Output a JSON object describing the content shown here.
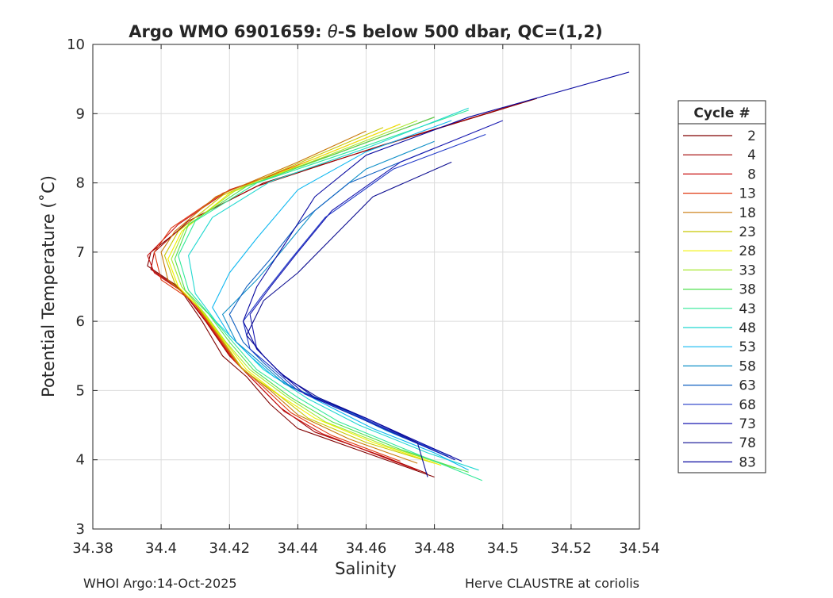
{
  "chart_data": {
    "type": "line",
    "title_prefix": "Argo WMO 6901659: ",
    "title_theta": "θ",
    "title_suffix": "-S below 500 dbar,  QC=(1,2)",
    "xlabel": "Salinity",
    "ylabel": "Potential Temperature (˚C)",
    "xlim": [
      34.38,
      34.54
    ],
    "ylim": [
      3,
      10
    ],
    "xticks": [
      34.38,
      34.4,
      34.42,
      34.44,
      34.46,
      34.48,
      34.5,
      34.52,
      34.54
    ],
    "xtick_labels": [
      "34.38",
      "34.4",
      "34.42",
      "34.44",
      "34.46",
      "34.48",
      "34.5",
      "34.52",
      "34.54"
    ],
    "yticks": [
      3,
      4,
      5,
      6,
      7,
      8,
      9,
      10
    ],
    "ytick_labels": [
      "3",
      "4",
      "5",
      "6",
      "7",
      "8",
      "9",
      "10"
    ],
    "grid": true,
    "legend_title": "Cycle #",
    "legend_position": "right-outside",
    "series": [
      {
        "name": "2",
        "color": "#800000",
        "points": [
          [
            34.51,
            9.22
          ],
          [
            34.47,
            8.62
          ],
          [
            34.43,
            8.0
          ],
          [
            34.41,
            7.5
          ],
          [
            34.397,
            7.0
          ],
          [
            34.396,
            6.8
          ],
          [
            34.405,
            6.5
          ],
          [
            34.412,
            6.0
          ],
          [
            34.418,
            5.5
          ],
          [
            34.425,
            5.2
          ],
          [
            34.432,
            4.8
          ],
          [
            34.44,
            4.45
          ],
          [
            34.46,
            4.1
          ],
          [
            34.48,
            3.75
          ]
        ]
      },
      {
        "name": "4",
        "color": "#a00000",
        "points": [
          [
            34.505,
            9.15
          ],
          [
            34.465,
            8.55
          ],
          [
            34.428,
            7.95
          ],
          [
            34.408,
            7.45
          ],
          [
            34.398,
            7.0
          ],
          [
            34.397,
            6.75
          ],
          [
            34.406,
            6.45
          ],
          [
            34.413,
            6.0
          ],
          [
            34.42,
            5.5
          ],
          [
            34.427,
            5.15
          ],
          [
            34.435,
            4.75
          ],
          [
            34.445,
            4.4
          ],
          [
            34.465,
            4.05
          ],
          [
            34.478,
            3.8
          ]
        ]
      },
      {
        "name": "8",
        "color": "#c81010",
        "points": [
          [
            34.48,
            8.95
          ],
          [
            34.45,
            8.4
          ],
          [
            34.42,
            7.9
          ],
          [
            34.405,
            7.4
          ],
          [
            34.396,
            6.95
          ],
          [
            34.398,
            6.7
          ],
          [
            34.407,
            6.4
          ],
          [
            34.414,
            5.95
          ],
          [
            34.421,
            5.45
          ],
          [
            34.428,
            5.1
          ],
          [
            34.436,
            4.7
          ],
          [
            34.447,
            4.38
          ],
          [
            34.467,
            4.0
          ],
          [
            34.475,
            3.85
          ]
        ]
      },
      {
        "name": "13",
        "color": "#e03810",
        "points": [
          [
            34.47,
            8.85
          ],
          [
            34.445,
            8.35
          ],
          [
            34.418,
            7.85
          ],
          [
            34.403,
            7.35
          ],
          [
            34.398,
            7.0
          ],
          [
            34.4,
            6.6
          ],
          [
            34.409,
            6.3
          ],
          [
            34.415,
            5.9
          ],
          [
            34.422,
            5.4
          ],
          [
            34.43,
            5.05
          ],
          [
            34.438,
            4.68
          ],
          [
            34.45,
            4.35
          ],
          [
            34.47,
            3.98
          ]
        ]
      },
      {
        "name": "18",
        "color": "#c87808",
        "points": [
          [
            34.46,
            8.75
          ],
          [
            34.44,
            8.3
          ],
          [
            34.416,
            7.8
          ],
          [
            34.404,
            7.3
          ],
          [
            34.4,
            7.0
          ],
          [
            34.402,
            6.6
          ],
          [
            34.41,
            6.25
          ],
          [
            34.416,
            5.85
          ],
          [
            34.423,
            5.35
          ],
          [
            34.432,
            5.0
          ],
          [
            34.44,
            4.65
          ],
          [
            34.455,
            4.3
          ],
          [
            34.475,
            3.95
          ]
        ]
      },
      {
        "name": "23",
        "color": "#c8c800",
        "points": [
          [
            34.465,
            8.8
          ],
          [
            34.442,
            8.32
          ],
          [
            34.418,
            7.82
          ],
          [
            34.405,
            7.3
          ],
          [
            34.401,
            6.95
          ],
          [
            34.404,
            6.55
          ],
          [
            34.411,
            6.2
          ],
          [
            34.417,
            5.8
          ],
          [
            34.424,
            5.3
          ],
          [
            34.434,
            4.95
          ],
          [
            34.443,
            4.6
          ],
          [
            34.46,
            4.25
          ],
          [
            34.48,
            3.95
          ]
        ]
      },
      {
        "name": "28",
        "color": "#f0f000",
        "points": [
          [
            34.47,
            8.85
          ],
          [
            34.445,
            8.35
          ],
          [
            34.42,
            7.85
          ],
          [
            34.406,
            7.3
          ],
          [
            34.402,
            6.9
          ],
          [
            34.405,
            6.5
          ],
          [
            34.412,
            6.15
          ],
          [
            34.418,
            5.75
          ],
          [
            34.425,
            5.3
          ],
          [
            34.435,
            4.92
          ],
          [
            34.445,
            4.6
          ],
          [
            34.462,
            4.25
          ],
          [
            34.482,
            3.92
          ]
        ]
      },
      {
        "name": "33",
        "color": "#a8e830",
        "points": [
          [
            34.475,
            8.9
          ],
          [
            34.448,
            8.38
          ],
          [
            34.422,
            7.9
          ],
          [
            34.407,
            7.35
          ],
          [
            34.403,
            6.9
          ],
          [
            34.406,
            6.5
          ],
          [
            34.413,
            6.1
          ],
          [
            34.419,
            5.7
          ],
          [
            34.426,
            5.3
          ],
          [
            34.437,
            4.9
          ],
          [
            34.448,
            4.55
          ],
          [
            34.466,
            4.2
          ],
          [
            34.486,
            3.88
          ]
        ]
      },
      {
        "name": "38",
        "color": "#50e050",
        "points": [
          [
            34.48,
            8.95
          ],
          [
            34.45,
            8.4
          ],
          [
            34.425,
            7.95
          ],
          [
            34.408,
            7.4
          ],
          [
            34.404,
            6.9
          ],
          [
            34.407,
            6.45
          ],
          [
            34.414,
            6.1
          ],
          [
            34.42,
            5.7
          ],
          [
            34.427,
            5.3
          ],
          [
            34.438,
            4.9
          ],
          [
            34.45,
            4.55
          ],
          [
            34.47,
            4.15
          ],
          [
            34.49,
            3.82
          ]
        ]
      },
      {
        "name": "43",
        "color": "#30e898",
        "points": [
          [
            34.49,
            9.05
          ],
          [
            34.455,
            8.45
          ],
          [
            34.428,
            8.0
          ],
          [
            34.41,
            7.45
          ],
          [
            34.405,
            6.95
          ],
          [
            34.408,
            6.45
          ],
          [
            34.415,
            6.05
          ],
          [
            34.421,
            5.7
          ],
          [
            34.428,
            5.3
          ],
          [
            34.44,
            4.9
          ],
          [
            34.452,
            4.55
          ],
          [
            34.474,
            4.1
          ],
          [
            34.494,
            3.7
          ]
        ]
      },
      {
        "name": "48",
        "color": "#20d8d0",
        "points": [
          [
            34.49,
            9.08
          ],
          [
            34.46,
            8.5
          ],
          [
            34.432,
            8.02
          ],
          [
            34.415,
            7.5
          ],
          [
            34.408,
            6.95
          ],
          [
            34.41,
            6.4
          ],
          [
            34.416,
            6.0
          ],
          [
            34.423,
            5.65
          ],
          [
            34.43,
            5.3
          ],
          [
            34.443,
            4.88
          ],
          [
            34.458,
            4.5
          ],
          [
            34.478,
            4.1
          ],
          [
            34.493,
            3.85
          ]
        ]
      },
      {
        "name": "53",
        "color": "#10b8f0",
        "points": [
          [
            34.485,
            8.9
          ],
          [
            34.46,
            8.45
          ],
          [
            34.44,
            7.9
          ],
          [
            34.428,
            7.2
          ],
          [
            34.42,
            6.7
          ],
          [
            34.415,
            6.2
          ],
          [
            34.42,
            5.8
          ],
          [
            34.426,
            5.5
          ],
          [
            34.433,
            5.2
          ],
          [
            34.446,
            4.85
          ],
          [
            34.462,
            4.45
          ],
          [
            34.48,
            4.1
          ],
          [
            34.49,
            3.85
          ]
        ]
      },
      {
        "name": "58",
        "color": "#1090c8",
        "points": [
          [
            34.48,
            8.6
          ],
          [
            34.46,
            8.2
          ],
          [
            34.445,
            7.6
          ],
          [
            34.435,
            7.0
          ],
          [
            34.428,
            6.6
          ],
          [
            34.418,
            6.1
          ],
          [
            34.422,
            5.7
          ],
          [
            34.428,
            5.45
          ],
          [
            34.436,
            5.1
          ],
          [
            34.45,
            4.8
          ],
          [
            34.466,
            4.42
          ],
          [
            34.484,
            4.05
          ]
        ]
      },
      {
        "name": "63",
        "color": "#1060c0",
        "points": [
          [
            34.48,
            8.5
          ],
          [
            34.455,
            8.0
          ],
          [
            34.44,
            7.4
          ],
          [
            34.432,
            6.9
          ],
          [
            34.425,
            6.5
          ],
          [
            34.42,
            6.1
          ],
          [
            34.424,
            5.7
          ],
          [
            34.43,
            5.4
          ],
          [
            34.438,
            5.05
          ],
          [
            34.452,
            4.75
          ],
          [
            34.468,
            4.4
          ],
          [
            34.486,
            4.0
          ]
        ]
      },
      {
        "name": "68",
        "color": "#2038c8",
        "points": [
          [
            34.495,
            8.7
          ],
          [
            34.468,
            8.2
          ],
          [
            34.448,
            7.5
          ],
          [
            34.438,
            6.9
          ],
          [
            34.43,
            6.4
          ],
          [
            34.424,
            6.0
          ],
          [
            34.426,
            5.6
          ],
          [
            34.432,
            5.35
          ],
          [
            34.44,
            5.0
          ],
          [
            34.455,
            4.7
          ],
          [
            34.47,
            4.35
          ],
          [
            34.485,
            4.05
          ]
        ]
      },
      {
        "name": "73",
        "color": "#1818b0",
        "points": [
          [
            34.5,
            8.9
          ],
          [
            34.47,
            8.3
          ],
          [
            34.45,
            7.6
          ],
          [
            34.44,
            7.0
          ],
          [
            34.432,
            6.5
          ],
          [
            34.426,
            6.1
          ],
          [
            34.428,
            5.6
          ],
          [
            34.434,
            5.3
          ],
          [
            34.442,
            4.95
          ],
          [
            34.456,
            4.65
          ],
          [
            34.472,
            4.3
          ],
          [
            34.486,
            4.0
          ]
        ]
      },
      {
        "name": "78",
        "color": "#0c0c90",
        "points": [
          [
            34.485,
            8.3
          ],
          [
            34.462,
            7.8
          ],
          [
            34.45,
            7.2
          ],
          [
            34.44,
            6.7
          ],
          [
            34.43,
            6.3
          ],
          [
            34.425,
            5.8
          ],
          [
            34.43,
            5.5
          ],
          [
            34.436,
            5.2
          ],
          [
            34.446,
            4.9
          ],
          [
            34.46,
            4.6
          ],
          [
            34.475,
            4.25
          ],
          [
            34.478,
            3.75
          ]
        ]
      },
      {
        "name": "83",
        "color": "#0808a0",
        "points": [
          [
            34.537,
            9.6
          ],
          [
            34.49,
            8.95
          ],
          [
            34.46,
            8.4
          ],
          [
            34.445,
            7.8
          ],
          [
            34.436,
            7.1
          ],
          [
            34.428,
            6.5
          ],
          [
            34.424,
            6.0
          ],
          [
            34.428,
            5.6
          ],
          [
            34.435,
            5.25
          ],
          [
            34.445,
            4.9
          ],
          [
            34.46,
            4.6
          ],
          [
            34.478,
            4.2
          ],
          [
            34.488,
            3.98
          ]
        ]
      }
    ]
  },
  "footer": {
    "left": "WHOI Argo:14-Oct-2025",
    "right": "Herve CLAUSTRE at coriolis"
  }
}
